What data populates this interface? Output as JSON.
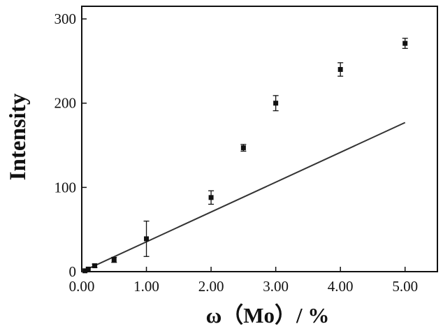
{
  "chart_data": {
    "type": "scatter",
    "title": "",
    "xlabel": "ω（Mo）/ %",
    "ylabel": "Intensity",
    "xlim": [
      0,
      5.5
    ],
    "ylim": [
      0,
      315
    ],
    "x_ticks": [
      "0.00",
      "1.00",
      "2.00",
      "3.00",
      "4.00",
      "5.00"
    ],
    "y_ticks": [
      "0",
      "100",
      "200",
      "300"
    ],
    "grid": false,
    "legend": "none",
    "series": [
      {
        "points": [
          {
            "x": 0.05,
            "y": 1,
            "err": 1
          },
          {
            "x": 0.1,
            "y": 3,
            "err": 1
          },
          {
            "x": 0.2,
            "y": 7,
            "err": 2
          },
          {
            "x": 0.5,
            "y": 14,
            "err": 3
          },
          {
            "x": 1.0,
            "y": 39,
            "err": 21
          },
          {
            "x": 2.0,
            "y": 88,
            "err": 8
          },
          {
            "x": 2.5,
            "y": 147,
            "err": 4
          },
          {
            "x": 3.0,
            "y": 200,
            "err": 9
          },
          {
            "x": 4.0,
            "y": 240,
            "err": 8
          },
          {
            "x": 5.0,
            "y": 271,
            "err": 6
          }
        ]
      }
    ],
    "fit_line": {
      "x": [
        0,
        5.0
      ],
      "y": [
        0,
        177
      ]
    },
    "colors": {
      "marker": "#111111",
      "line": "#333333",
      "axis": "#111111"
    }
  }
}
